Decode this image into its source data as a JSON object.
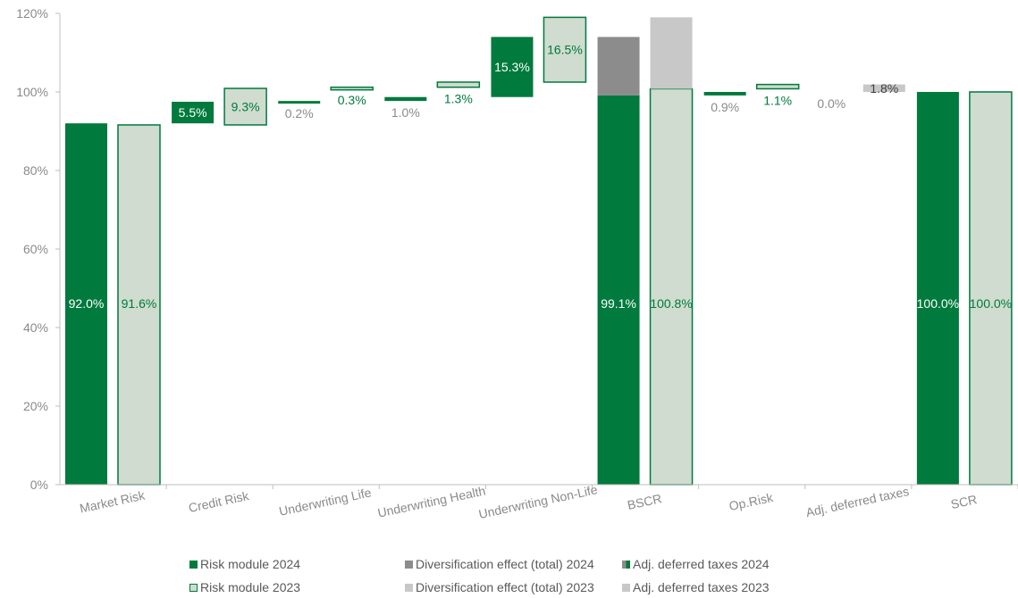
{
  "chart_data": {
    "type": "bar",
    "subtype": "waterfall",
    "categories": [
      "Market Risk",
      "Credit Risk",
      "Underwriting Life",
      "Underwriting Health",
      "Underwriting Non-Life",
      "BSCR",
      "Op.Risk",
      "Adj. deferred taxes",
      "SCR"
    ],
    "yticks": [
      "0%",
      "20%",
      "40%",
      "60%",
      "80%",
      "100%",
      "120%"
    ],
    "ylim": [
      0,
      120
    ],
    "legend_position": "bottom",
    "colors": {
      "risk_2024": "#007A3D",
      "risk_2023_fill": "#CFDCCF",
      "risk_2023_border": "#007A3D",
      "div_2024": "#8C8C8C",
      "div_2023": "#C8C8C8",
      "axis": "#BFBFBF",
      "tick_text": "#8A8A8A",
      "label_green": "#007A3D",
      "label_grey": "#8A8A8A"
    },
    "bars": [
      {
        "category": "Market Risk",
        "series": "Risk module 2024",
        "base": 0,
        "top": 92.0,
        "label": "92.0%",
        "label_style": "inside-white"
      },
      {
        "category": "Market Risk",
        "series": "Risk module 2023",
        "base": 0,
        "top": 91.6,
        "label": "91.6%",
        "label_style": "inside-green"
      },
      {
        "category": "Credit Risk",
        "series": "Risk module 2024",
        "base": 92.0,
        "top": 97.5,
        "label": "5.5%",
        "label_style": "inside-white"
      },
      {
        "category": "Credit Risk",
        "series": "Risk module 2023",
        "base": 91.6,
        "top": 100.9,
        "label": "9.3%",
        "label_style": "inside-green"
      },
      {
        "category": "Underwriting Life",
        "series": "Risk module 2024",
        "base": 97.5,
        "top": 97.7,
        "label": "0.2%",
        "label_style": "below-grey"
      },
      {
        "category": "Underwriting Life",
        "series": "Risk module 2023",
        "base": 100.9,
        "top": 101.2,
        "label": "0.3%",
        "label_style": "below-green"
      },
      {
        "category": "Underwriting Health",
        "series": "Risk module 2024",
        "base": 97.7,
        "top": 98.7,
        "label": "1.0%",
        "label_style": "below-grey"
      },
      {
        "category": "Underwriting Health",
        "series": "Risk module 2023",
        "base": 101.2,
        "top": 102.5,
        "label": "1.3%",
        "label_style": "below-green"
      },
      {
        "category": "Underwriting Non-Life",
        "series": "Risk module 2024",
        "base": 98.7,
        "top": 114.0,
        "label": "15.3%",
        "label_style": "inside-white"
      },
      {
        "category": "Underwriting Non-Life",
        "series": "Risk module 2023",
        "base": 102.5,
        "top": 119.0,
        "label": "16.5%",
        "label_style": "inside-green"
      },
      {
        "category": "BSCR",
        "series": "Risk module 2024",
        "base": 0,
        "top": 99.1,
        "label": "99.1%",
        "label_style": "inside-white"
      },
      {
        "category": "BSCR",
        "series": "Diversification effect (total) 2024",
        "base": 99.1,
        "top": 114.0,
        "label": "",
        "label_style": "none"
      },
      {
        "category": "BSCR",
        "series": "Risk module 2023",
        "base": 0,
        "top": 100.8,
        "label": "100.8%",
        "label_style": "inside-green"
      },
      {
        "category": "BSCR",
        "series": "Diversification effect (total) 2023",
        "base": 100.8,
        "top": 119.0,
        "label": "",
        "label_style": "none"
      },
      {
        "category": "Op.Risk",
        "series": "Risk module 2024",
        "base": 99.1,
        "top": 100.0,
        "label": "0.9%",
        "label_style": "below-grey"
      },
      {
        "category": "Op.Risk",
        "series": "Risk module 2023",
        "base": 100.8,
        "top": 101.9,
        "label": "1.1%",
        "label_style": "below-green"
      },
      {
        "category": "Adj. deferred taxes",
        "series": "Adj. deferred taxes 2024",
        "base": 100.0,
        "top": 100.0,
        "label": "0.0%",
        "label_style": "below-grey"
      },
      {
        "category": "Adj. deferred taxes",
        "series": "Adj. deferred taxes 2023",
        "base": 100.0,
        "top": 101.9,
        "label": "1.8%",
        "label_style": "inside-dark"
      },
      {
        "category": "SCR",
        "series": "Risk module 2024",
        "base": 0,
        "top": 100.0,
        "label": "100.0%",
        "label_style": "inside-white"
      },
      {
        "category": "SCR",
        "series": "Risk module 2023",
        "base": 0,
        "top": 100.0,
        "label": "100.0%",
        "label_style": "inside-green"
      }
    ],
    "legend": [
      {
        "label": "Risk module 2024",
        "swatch": "risk_2024"
      },
      {
        "label": "Diversification effect (total) 2024",
        "swatch": "div_2024"
      },
      {
        "label": "Adj. deferred taxes 2024",
        "swatch": "tax_2024"
      },
      {
        "label": "Risk module 2023",
        "swatch": "risk_2023"
      },
      {
        "label": "Diversification effect (total) 2023",
        "swatch": "div_2023"
      },
      {
        "label": "Adj. deferred taxes 2023",
        "swatch": "tax_2023"
      }
    ]
  }
}
